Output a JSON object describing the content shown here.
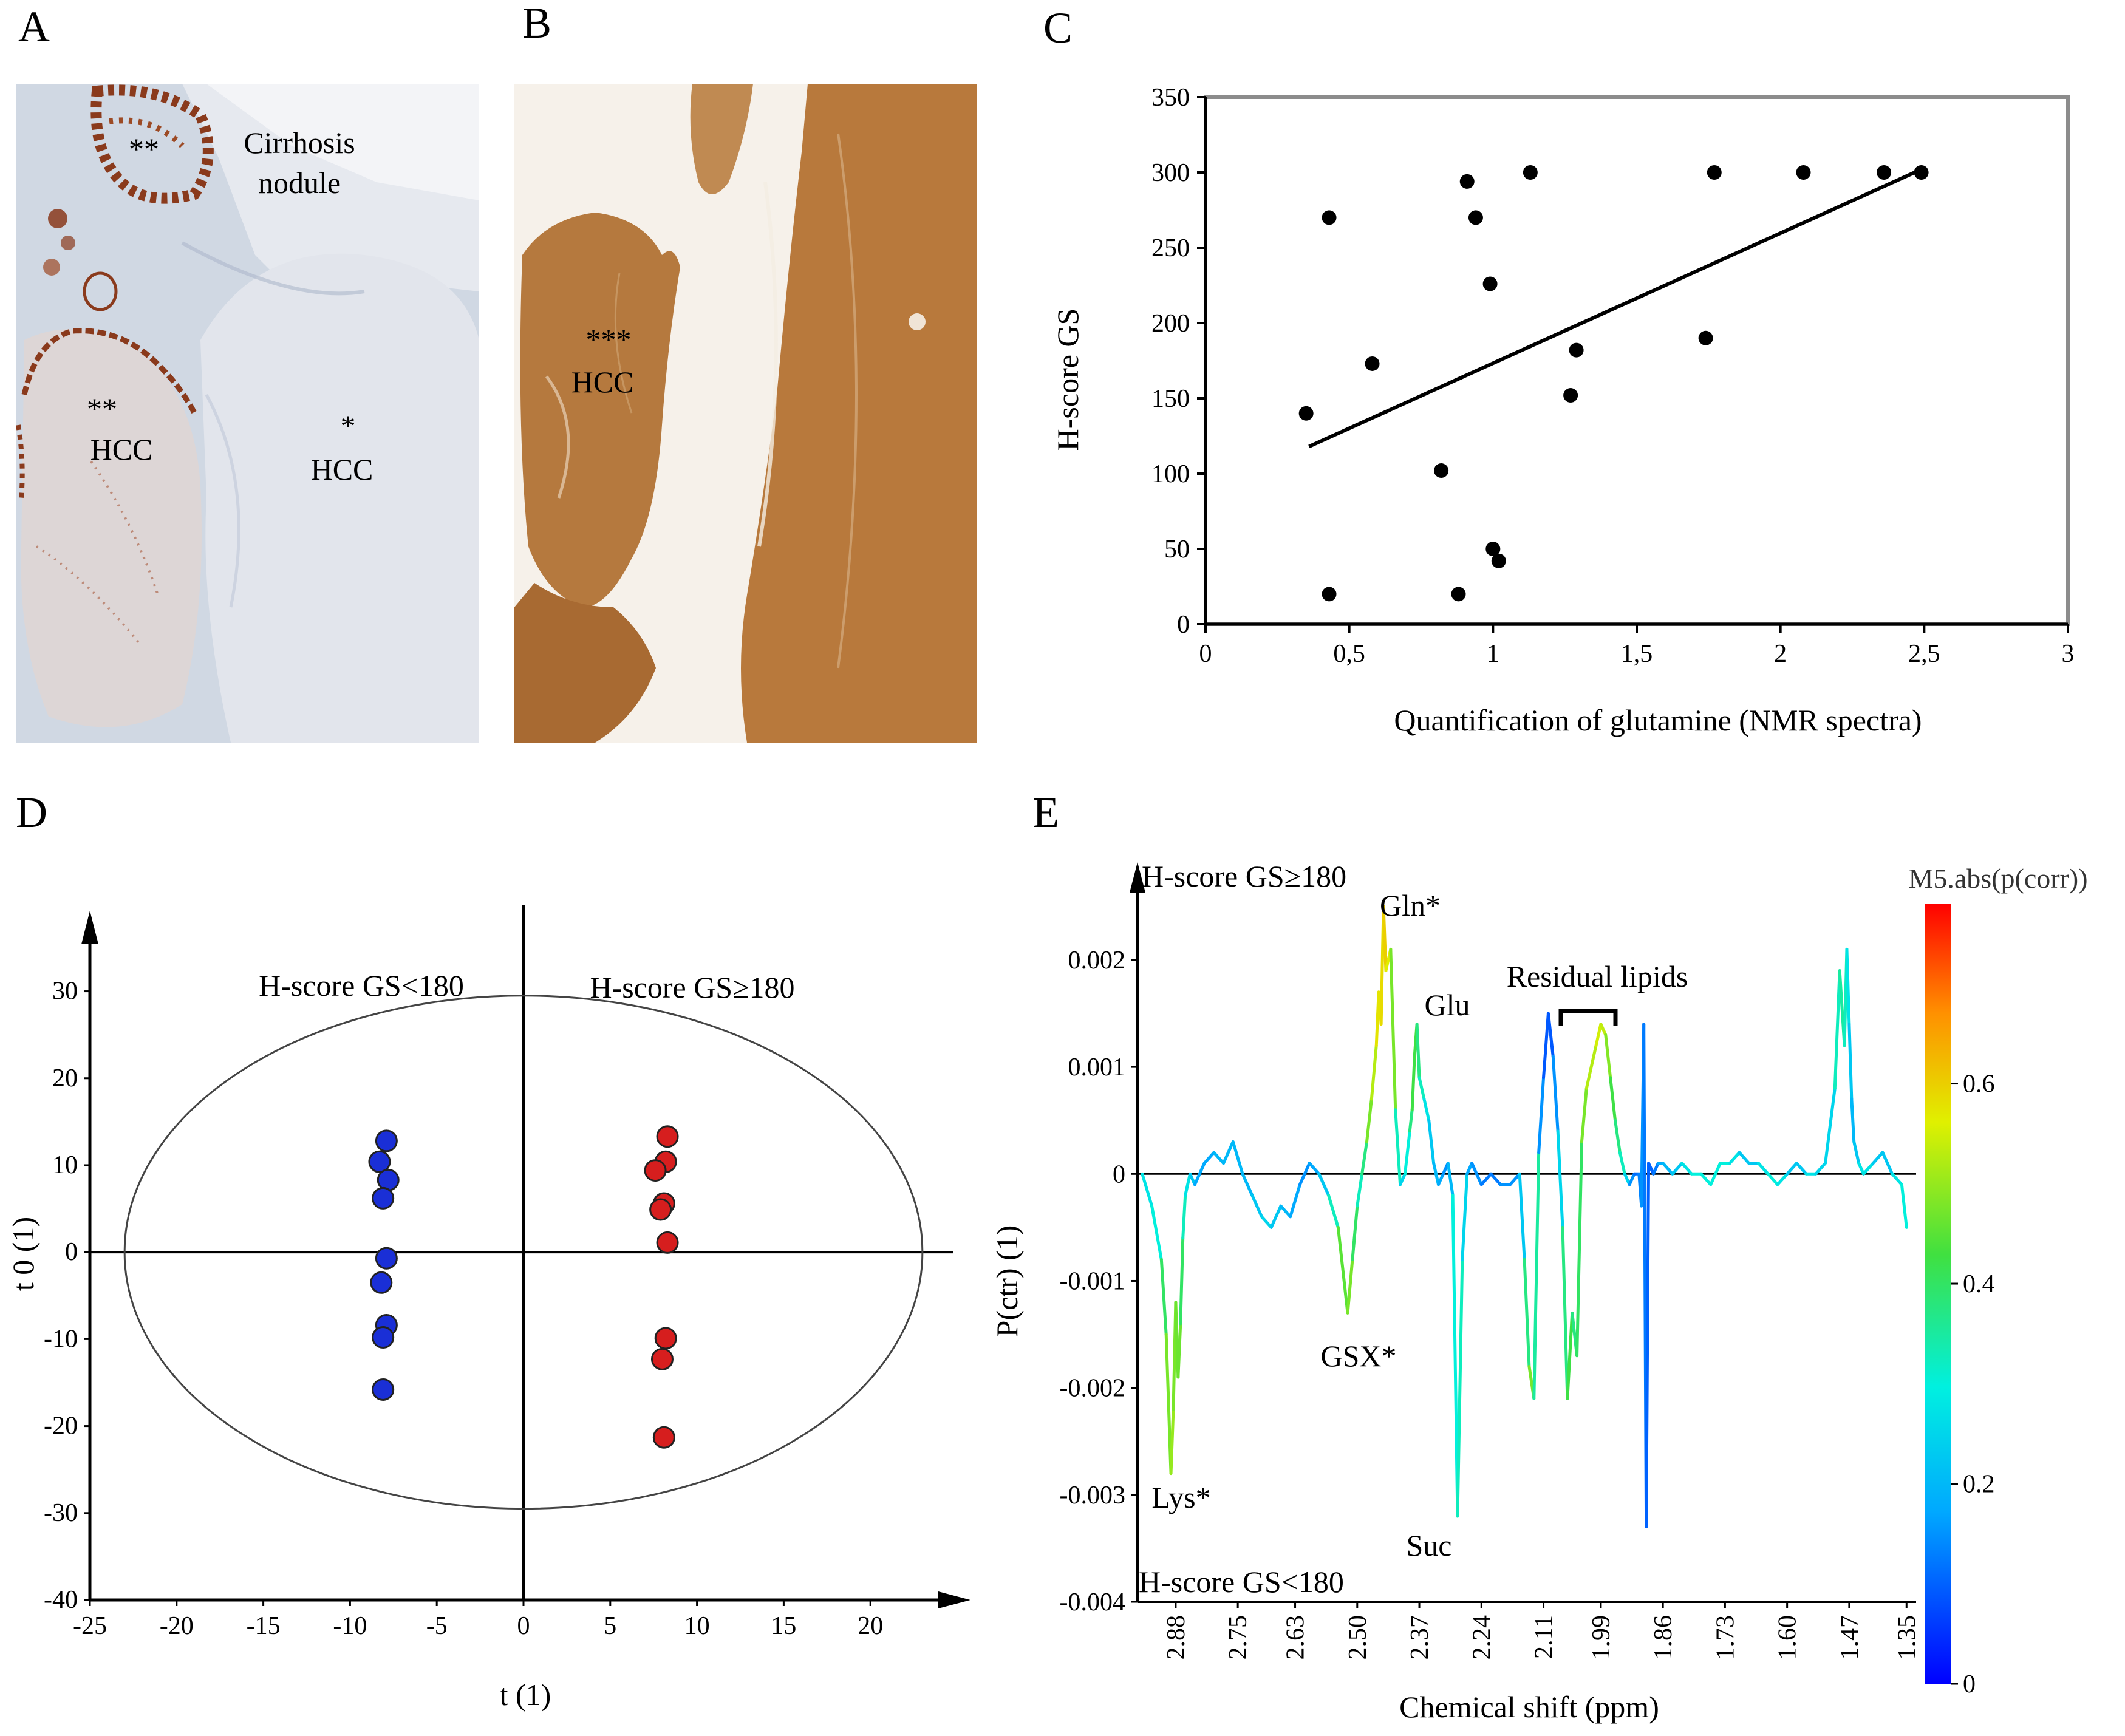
{
  "figure": {
    "panel_labels": [
      "A",
      "B",
      "C",
      "D",
      "E"
    ]
  },
  "panel_a": {
    "labels": {
      "stars_top": "**",
      "cirrhosis_1": "Cirrhosis",
      "cirrhosis_2": "nodule",
      "stars_left": "**",
      "hcc_left": "HCC",
      "star_right": "*",
      "hcc_right": "HCC"
    },
    "colors": {
      "stain": "#8a3a1c",
      "background": "#cfd6e2"
    }
  },
  "panel_b": {
    "labels": {
      "stars": "***",
      "hcc": "HCC"
    },
    "colors": {
      "stain": "#b87a3e",
      "background": "#f6f1ea"
    }
  },
  "chart_data": [
    {
      "panel": "C",
      "type": "scatter",
      "xlabel": "Quantification of glutamine (NMR spectra)",
      "ylabel": "H-score GS",
      "xlim": [
        0,
        3
      ],
      "ylim": [
        0,
        350
      ],
      "x_ticks": [
        "0",
        "0,5",
        "1",
        "1,5",
        "2",
        "2,5",
        "3"
      ],
      "y_ticks": [
        "0",
        "50",
        "100",
        "150",
        "200",
        "250",
        "300",
        "350"
      ],
      "points": [
        {
          "x": 0.35,
          "y": 140
        },
        {
          "x": 0.43,
          "y": 270
        },
        {
          "x": 0.43,
          "y": 20
        },
        {
          "x": 0.58,
          "y": 173
        },
        {
          "x": 0.82,
          "y": 102
        },
        {
          "x": 0.88,
          "y": 20
        },
        {
          "x": 0.91,
          "y": 294
        },
        {
          "x": 0.94,
          "y": 270
        },
        {
          "x": 0.99,
          "y": 226
        },
        {
          "x": 1.0,
          "y": 50
        },
        {
          "x": 1.02,
          "y": 42
        },
        {
          "x": 1.13,
          "y": 300
        },
        {
          "x": 1.27,
          "y": 152
        },
        {
          "x": 1.29,
          "y": 182
        },
        {
          "x": 1.74,
          "y": 190
        },
        {
          "x": 1.77,
          "y": 300
        },
        {
          "x": 2.08,
          "y": 300
        },
        {
          "x": 2.36,
          "y": 300
        },
        {
          "x": 2.49,
          "y": 300
        }
      ],
      "trendline": {
        "x": [
          0.36,
          2.49
        ],
        "y": [
          118,
          302
        ]
      },
      "grid": false,
      "marker_color": "#000000"
    },
    {
      "panel": "D",
      "type": "scatter",
      "xlabel": "t (1)",
      "ylabel": "t 0 (1)",
      "xlim": [
        -25,
        25
      ],
      "ylim": [
        -40,
        38
      ],
      "x_ticks": [
        "-25",
        "-20",
        "-15",
        "-10",
        "-5",
        "0",
        "5",
        "10",
        "15",
        "20"
      ],
      "y_ticks": [
        "30",
        "20",
        "10",
        "0",
        "-10",
        "-20",
        "-30",
        "-40"
      ],
      "annotations": [
        "H-score GS<180",
        "H-score GS≥180"
      ],
      "ellipse": {
        "cx": 0,
        "cy": 0,
        "rx": 23,
        "ry": 29.5
      },
      "series": [
        {
          "name": "H-score GS<180",
          "color": "#1a2fd6",
          "points": [
            {
              "x": -7.9,
              "y": 12.8
            },
            {
              "x": -8.3,
              "y": 10.4
            },
            {
              "x": -7.8,
              "y": 8.3
            },
            {
              "x": -8.1,
              "y": 6.2
            },
            {
              "x": -7.9,
              "y": -0.7
            },
            {
              "x": -8.2,
              "y": -3.5
            },
            {
              "x": -7.9,
              "y": -8.4
            },
            {
              "x": -8.1,
              "y": -9.8
            },
            {
              "x": -8.1,
              "y": -15.8
            }
          ]
        },
        {
          "name": "H-score GS≥180",
          "color": "#d61e1e",
          "points": [
            {
              "x": 8.3,
              "y": 13.3
            },
            {
              "x": 8.2,
              "y": 10.4
            },
            {
              "x": 7.6,
              "y": 9.4
            },
            {
              "x": 8.1,
              "y": 5.6
            },
            {
              "x": 7.9,
              "y": 4.9
            },
            {
              "x": 8.3,
              "y": 1.1
            },
            {
              "x": 8.2,
              "y": -9.9
            },
            {
              "x": 8.0,
              "y": -12.3
            },
            {
              "x": 8.1,
              "y": -21.3
            }
          ]
        }
      ]
    },
    {
      "panel": "E",
      "type": "line",
      "xlabel": "Chemical shift (ppm)",
      "ylabel": "P(ctr) (1)",
      "xlim": [
        2.96,
        1.33
      ],
      "ylim": [
        -0.004,
        0.0028
      ],
      "x_ticks": [
        "2.88",
        "2.75",
        "2.63",
        "2.50",
        "2.37",
        "2.24",
        "2.11",
        "1.99",
        "1.86",
        "1.73",
        "1.60",
        "1.47",
        "1.35"
      ],
      "y_ticks": [
        "0.002",
        "0.001",
        "0",
        "-0.001",
        "-0.002",
        "-0.003",
        "-0.004"
      ],
      "annotations": [
        "H-score GS≥180",
        "H-score GS<180",
        "Gln*",
        "Glu",
        "Residual lipids",
        "GSX*",
        "Lys*",
        "Suc"
      ],
      "colorbar": {
        "title": "M5.abs(p(corr))",
        "ticks": [
          "0.6",
          "0.4",
          "0.2",
          "0"
        ],
        "range": [
          0,
          0.78
        ]
      },
      "series": [
        {
          "x": [
            2.95,
            2.93,
            2.91,
            2.9,
            2.89,
            2.885,
            2.88,
            2.875,
            2.87,
            2.865,
            2.86,
            2.85,
            2.84,
            2.82,
            2.8,
            2.78,
            2.76,
            2.74,
            2.72,
            2.7,
            2.68,
            2.66,
            2.64,
            2.62,
            2.6,
            2.58,
            2.56,
            2.54,
            2.52,
            2.51,
            2.5,
            2.49,
            2.48,
            2.47,
            2.46,
            2.455,
            2.45,
            2.445,
            2.44,
            2.43,
            2.42,
            2.41,
            2.4,
            2.39,
            2.385,
            2.38,
            2.375,
            2.37,
            2.36,
            2.35,
            2.34,
            2.33,
            2.32,
            2.31,
            2.3,
            2.29,
            2.28,
            2.27,
            2.26,
            2.24,
            2.22,
            2.2,
            2.18,
            2.16,
            2.15,
            2.14,
            2.13,
            2.12,
            2.11,
            2.1,
            2.09,
            2.08,
            2.07,
            2.06,
            2.05,
            2.04,
            2.03,
            2.02,
            2.0,
            1.99,
            1.98,
            1.97,
            1.96,
            1.95,
            1.94,
            1.93,
            1.92,
            1.91,
            1.905,
            1.9,
            1.895,
            1.89,
            1.88,
            1.87,
            1.86,
            1.84,
            1.82,
            1.8,
            1.78,
            1.76,
            1.74,
            1.72,
            1.7,
            1.68,
            1.66,
            1.64,
            1.62,
            1.6,
            1.58,
            1.56,
            1.54,
            1.52,
            1.5,
            1.49,
            1.48,
            1.475,
            1.47,
            1.465,
            1.46,
            1.45,
            1.44,
            1.42,
            1.4,
            1.38,
            1.36,
            1.35
          ],
          "y": [
            0.0,
            -0.0003,
            -0.0008,
            -0.0015,
            -0.0028,
            -0.0022,
            -0.0012,
            -0.0019,
            -0.0014,
            -0.0006,
            -0.0002,
            0.0,
            -0.0001,
            0.0001,
            0.0002,
            0.0001,
            0.0003,
            0.0,
            -0.0002,
            -0.0004,
            -0.0005,
            -0.0003,
            -0.0004,
            -0.0001,
            0.0001,
            0.0,
            -0.0002,
            -0.0005,
            -0.0013,
            -0.0008,
            -0.0003,
            0.0,
            0.0003,
            0.0007,
            0.0012,
            0.0017,
            0.0014,
            0.0025,
            0.0019,
            0.0021,
            0.0006,
            -0.0001,
            0.0,
            0.0004,
            0.0006,
            0.0011,
            0.0014,
            0.0009,
            0.0007,
            0.0005,
            0.0001,
            -0.0001,
            0.0,
            0.0001,
            -0.0002,
            -0.0032,
            -0.0008,
            0.0,
            0.0001,
            -0.0001,
            0.0,
            -0.0001,
            -0.0001,
            0.0,
            -0.0008,
            -0.0018,
            -0.0021,
            0.0002,
            0.0009,
            0.0015,
            0.0011,
            0.0004,
            -0.0005,
            -0.0021,
            -0.0013,
            -0.0017,
            0.0003,
            0.0008,
            0.0012,
            0.0014,
            0.0013,
            0.0009,
            0.0005,
            0.0002,
            0.0,
            -0.0001,
            0.0,
            0.0,
            -0.0003,
            0.0014,
            -0.0033,
            0.0001,
            0.0,
            0.0001,
            0.0001,
            0.0,
            0.0001,
            0.0,
            0.0,
            -0.0001,
            0.0001,
            0.0001,
            0.0002,
            0.0001,
            0.0001,
            0.0,
            -0.0001,
            0.0,
            0.0001,
            0.0,
            0.0,
            0.0001,
            0.0008,
            0.0019,
            0.0012,
            0.0021,
            0.0014,
            0.0007,
            0.0003,
            0.0001,
            0.0,
            0.0001,
            0.0002,
            0.0,
            -0.0001,
            -0.0005
          ],
          "corr": [
            0.3,
            0.25,
            0.35,
            0.45,
            0.5,
            0.5,
            0.45,
            0.48,
            0.45,
            0.35,
            0.3,
            0.25,
            0.2,
            0.15,
            0.2,
            0.2,
            0.2,
            0.2,
            0.2,
            0.25,
            0.25,
            0.2,
            0.2,
            0.15,
            0.15,
            0.2,
            0.25,
            0.4,
            0.5,
            0.45,
            0.35,
            0.3,
            0.45,
            0.5,
            0.55,
            0.6,
            0.55,
            0.62,
            0.58,
            0.55,
            0.4,
            0.25,
            0.25,
            0.35,
            0.4,
            0.45,
            0.4,
            0.35,
            0.3,
            0.25,
            0.2,
            0.2,
            0.15,
            0.15,
            0.25,
            0.35,
            0.3,
            0.2,
            0.15,
            0.15,
            0.1,
            0.15,
            0.15,
            0.15,
            0.3,
            0.45,
            0.5,
            0.2,
            0.1,
            0.08,
            0.1,
            0.2,
            0.3,
            0.45,
            0.4,
            0.35,
            0.45,
            0.5,
            0.55,
            0.55,
            0.52,
            0.45,
            0.4,
            0.35,
            0.3,
            0.2,
            0.1,
            0.12,
            0.15,
            0.15,
            0.1,
            0.1,
            0.1,
            0.15,
            0.2,
            0.2,
            0.25,
            0.3,
            0.3,
            0.3,
            0.3,
            0.3,
            0.25,
            0.2,
            0.25,
            0.3,
            0.3,
            0.25,
            0.2,
            0.25,
            0.3,
            0.2,
            0.3,
            0.35,
            0.35,
            0.3,
            0.25,
            0.2,
            0.2,
            0.25,
            0.3,
            0.25,
            0.2,
            0.25,
            0.3,
            0.3
          ]
        }
      ]
    }
  ]
}
